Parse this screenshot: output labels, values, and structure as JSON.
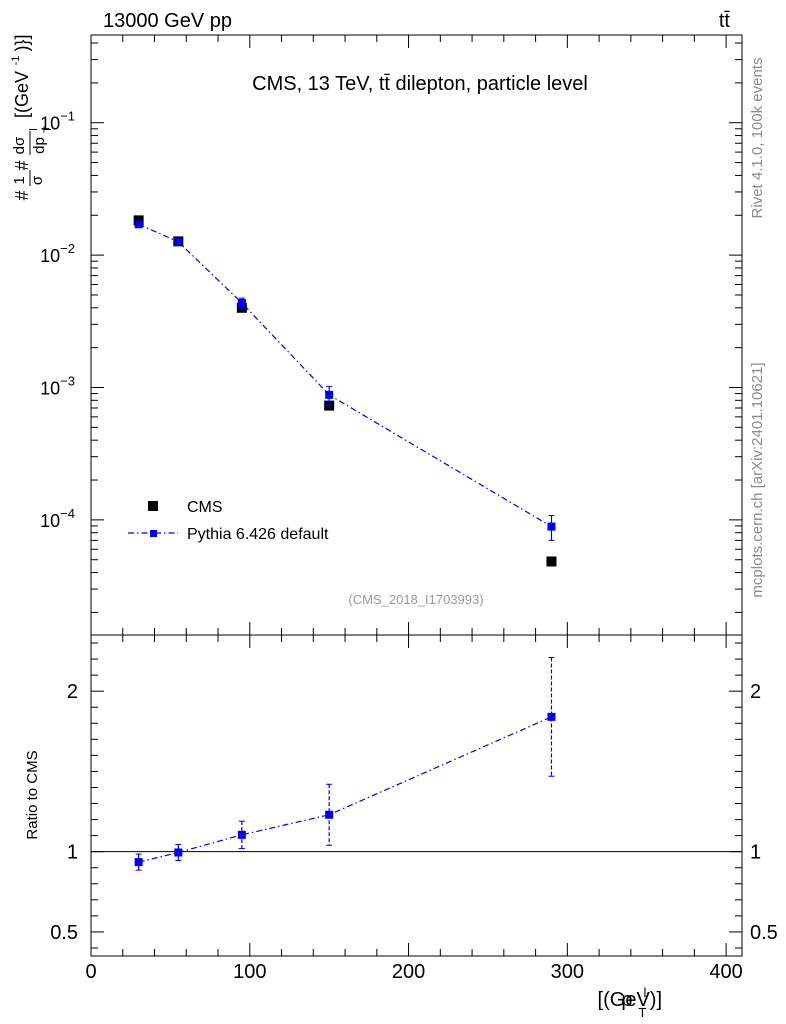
{
  "header": {
    "left": "13000 GeV pp",
    "right": "tt̄"
  },
  "chart_data": [
    {
      "type": "scatter",
      "title": "CMS, 13 TeV, tt̄ dilepton, particle level",
      "ylabel": {
        "prefix": "#",
        "frac1_num": "1",
        "frac1_den": "σ",
        "mid": "#",
        "frac2_num": "dσ",
        "frac2_den": "dp",
        "frac2_den_sup": "l",
        "frac2_den_sub": "T",
        "unit": "[(GeV",
        "unit_sup": "-1",
        "unit_end": ")}]"
      },
      "xlim": [
        0,
        410
      ],
      "ylim": [
        1.35e-05,
        0.46
      ],
      "yscale": "log",
      "y_tick_labels": [
        {
          "label": "10",
          "exp": "−1",
          "value": 0.1
        },
        {
          "label": "10",
          "exp": "−2",
          "value": 0.01
        },
        {
          "label": "10",
          "exp": "−3",
          "value": 0.001
        },
        {
          "label": "10",
          "exp": "−4",
          "value": 0.0001
        }
      ],
      "series": [
        {
          "name": "CMS",
          "color": "#000000",
          "marker": "square",
          "x": [
            30,
            55,
            95,
            150,
            290
          ],
          "y": [
            0.0183,
            0.0127,
            0.004,
            0.00073,
            4.85e-05
          ]
        },
        {
          "name": "Pythia 6.426 default",
          "color": "#0000ee",
          "marker": "square",
          "line": "dash-dot",
          "x": [
            30,
            55,
            95,
            150,
            290
          ],
          "y": [
            0.0171,
            0.0126,
            0.00435,
            0.00088,
            8.9e-05
          ],
          "yerr": [
            0.0009,
            0.0006,
            0.00038,
            0.00014,
            1.9e-05
          ]
        }
      ],
      "legend_position": "bottom-left",
      "annotation": "(CMS_2018_I1703993)"
    },
    {
      "type": "scatter",
      "ylabel": "Ratio to CMS",
      "xlabel": {
        "main": "p",
        "sup": "l",
        "sub": "T",
        "unit": "[(GeV)]"
      },
      "xlim": [
        0,
        410
      ],
      "ylim": [
        0.35,
        2.35
      ],
      "reference_line": 1,
      "x_tick_labels": [
        "0",
        "100",
        "200",
        "300",
        "400"
      ],
      "x_tick_values": [
        0,
        100,
        200,
        300,
        400
      ],
      "y_tick_labels": [
        "0.5",
        "1",
        "2"
      ],
      "y_tick_values": [
        0.5,
        1,
        2
      ],
      "series": [
        {
          "name": "Pythia 6.426 default",
          "color": "#0000ee",
          "line": "dash-dot",
          "x": [
            30,
            55,
            95,
            150,
            290
          ],
          "y": [
            0.935,
            0.995,
            1.105,
            1.23,
            1.84
          ],
          "yerr": [
            0.05,
            0.05,
            0.085,
            0.19,
            0.37
          ]
        }
      ]
    }
  ],
  "side_labels": {
    "rivet": "Rivet 4.1.0,  100k events",
    "mcplots": "mcplots.cern.ch [arXiv:2401.10621]"
  }
}
